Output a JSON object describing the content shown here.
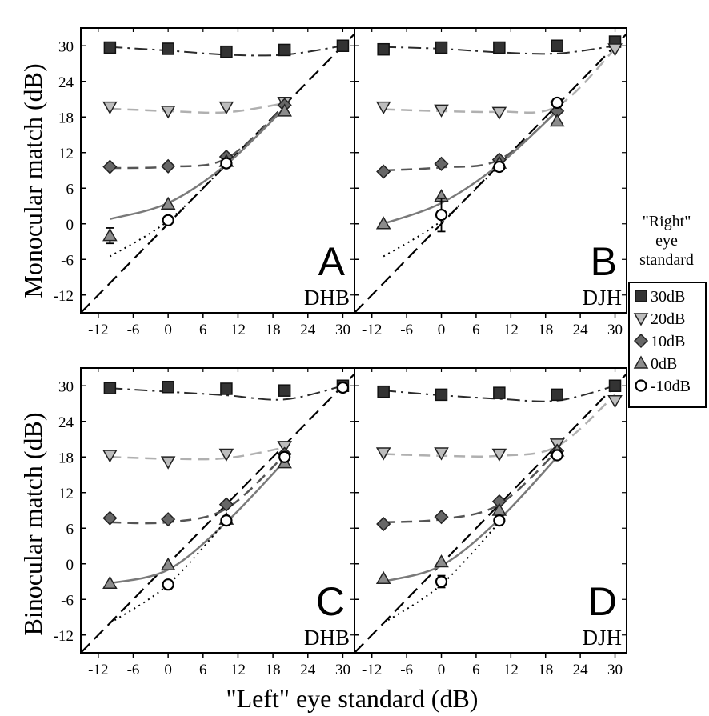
{
  "chart_data": {
    "type": "line",
    "xlabel": "\"Left\" eye standard (dB)",
    "ylabel_top": "Monocular match (dB)",
    "ylabel_bottom": "Binocular match (dB)",
    "xticks": [
      -12,
      -6,
      0,
      6,
      12,
      18,
      24,
      30
    ],
    "yticks": [
      30,
      24,
      18,
      12,
      6,
      0,
      -6,
      -12
    ],
    "xlim": [
      -15,
      32
    ],
    "ylim": [
      -15,
      33
    ],
    "legend": {
      "title_lines": [
        "\"Right\"",
        "eye",
        "standard"
      ],
      "position": "right",
      "entries": [
        {
          "label": "30dB",
          "marker": "square",
          "color": "#333333"
        },
        {
          "label": "20dB",
          "marker": "triangle-down",
          "color": "#b3b3b3"
        },
        {
          "label": "10dB",
          "marker": "diamond",
          "color": "#666666"
        },
        {
          "label": "0dB",
          "marker": "triangle-up",
          "color": "#8c8c8c"
        },
        {
          "label": "-10dB",
          "marker": "circle",
          "color": "#ffffff"
        }
      ]
    },
    "panels": [
      {
        "letter": "A",
        "subject": "DHB",
        "series": [
          {
            "name": "30dB",
            "x": [
              -10,
              0,
              10,
              20,
              30
            ],
            "y": [
              29.7,
              29.5,
              29.0,
              29.3,
              30.0
            ],
            "curve_y": [
              29.8,
              29.2,
              28.5,
              28.5,
              30.0
            ],
            "line": "dashdot"
          },
          {
            "name": "20dB",
            "x": [
              -10,
              0,
              10,
              20
            ],
            "y": [
              19.7,
              19.0,
              19.7,
              20.5
            ],
            "curve_y": [
              19.4,
              19.0,
              18.8,
              20.3
            ],
            "line": "dashed"
          },
          {
            "name": "10dB",
            "x": [
              -10,
              0,
              10,
              20
            ],
            "y": [
              9.6,
              9.7,
              11.3,
              20.0
            ],
            "curve_y": [
              9.4,
              9.6,
              11.0,
              19.8
            ],
            "line": "dashed"
          },
          {
            "name": "0dB",
            "x": [
              -10,
              0,
              10,
              20
            ],
            "y": [
              -2.0,
              3.3,
              10.5,
              19.0
            ],
            "err": [
              1.3,
              0,
              0,
              0
            ],
            "curve_y": [
              0.8,
              3.5,
              10.0,
              19.5
            ],
            "line": "solid"
          },
          {
            "name": "-10dB",
            "x": [
              0,
              10
            ],
            "y": [
              0.6,
              10.2
            ],
            "curve_y": [
              -5.5,
              0.5,
              10.0
            ],
            "curve_x": [
              -10,
              0,
              10
            ],
            "line": "dotted"
          }
        ]
      },
      {
        "letter": "B",
        "subject": "DJH",
        "series": [
          {
            "name": "30dB",
            "x": [
              -10,
              0,
              10,
              20,
              30
            ],
            "y": [
              29.4,
              29.7,
              29.7,
              30.0,
              30.7
            ],
            "curve_y": [
              29.8,
              29.5,
              28.9,
              28.7,
              30.0
            ],
            "line": "dashdot"
          },
          {
            "name": "20dB",
            "x": [
              -10,
              0,
              10,
              20,
              30
            ],
            "y": [
              19.7,
              19.2,
              18.8,
              19.7,
              29.5
            ],
            "curve_y": [
              19.3,
              19.0,
              18.9,
              19.8,
              29.5
            ],
            "line": "dashed"
          },
          {
            "name": "10dB",
            "x": [
              -10,
              0,
              10,
              20
            ],
            "y": [
              8.8,
              10.1,
              10.8,
              19.0
            ],
            "curve_y": [
              9.0,
              9.5,
              10.8,
              19.0
            ],
            "line": "dashed"
          },
          {
            "name": "0dB",
            "x": [
              -10,
              0,
              10,
              20
            ],
            "y": [
              0.0,
              4.6,
              10.2,
              17.3
            ],
            "curve_y": [
              0.0,
              3.5,
              10.0,
              19.0
            ],
            "line": "solid"
          },
          {
            "name": "-10dB",
            "x": [
              0,
              10,
              20
            ],
            "y": [
              1.5,
              9.6,
              20.4
            ],
            "err": [
              2.8,
              0,
              0
            ],
            "curve_y": [
              -5.5,
              0.5,
              9.8
            ],
            "curve_x": [
              -10,
              0,
              10
            ],
            "line": "dotted"
          }
        ]
      },
      {
        "letter": "C",
        "subject": "DHB",
        "series": [
          {
            "name": "30dB",
            "x": [
              -10,
              0,
              10,
              20,
              30
            ],
            "y": [
              29.6,
              29.8,
              29.5,
              29.2,
              30.0
            ],
            "curve_y": [
              29.6,
              29.0,
              28.4,
              27.7,
              30.0
            ],
            "line": "dashdot"
          },
          {
            "name": "20dB",
            "x": [
              -10,
              0,
              10,
              20
            ],
            "y": [
              18.3,
              17.2,
              18.5,
              19.8
            ],
            "curve_y": [
              18.0,
              17.7,
              17.8,
              19.6
            ],
            "line": "dashed"
          },
          {
            "name": "10dB",
            "x": [
              -10,
              0,
              10,
              20
            ],
            "y": [
              7.7,
              7.5,
              10.0,
              18.5
            ],
            "curve_y": [
              7.0,
              7.0,
              9.3,
              18.3
            ],
            "line": "dashed"
          },
          {
            "name": "0dB",
            "x": [
              -10,
              0,
              10,
              20
            ],
            "y": [
              -3.3,
              -0.2,
              7.5,
              17.0
            ],
            "curve_y": [
              -3.3,
              -1.0,
              7.0,
              17.3
            ],
            "line": "solid"
          },
          {
            "name": "-10dB",
            "x": [
              0,
              10,
              20,
              30
            ],
            "y": [
              -3.5,
              7.3,
              18.0,
              29.7
            ],
            "curve_y": [
              -10.0,
              -3.5,
              7.3
            ],
            "curve_x": [
              -10,
              0,
              10
            ],
            "line": "dotted"
          }
        ]
      },
      {
        "letter": "D",
        "subject": "DJH",
        "series": [
          {
            "name": "30dB",
            "x": [
              -10,
              0,
              10,
              20,
              30
            ],
            "y": [
              29.0,
              28.5,
              28.8,
              28.5,
              30.0
            ],
            "curve_y": [
              29.2,
              28.4,
              27.8,
              27.5,
              30.0
            ],
            "line": "dashdot"
          },
          {
            "name": "20dB",
            "x": [
              -10,
              0,
              10,
              20,
              30
            ],
            "y": [
              18.7,
              18.7,
              18.5,
              20.2,
              27.5
            ],
            "curve_y": [
              18.5,
              18.2,
              18.2,
              19.8,
              28.5
            ],
            "line": "dashed"
          },
          {
            "name": "10dB",
            "x": [
              -10,
              0,
              10,
              20
            ],
            "y": [
              6.7,
              7.9,
              10.5,
              19.0
            ],
            "curve_y": [
              7.0,
              7.5,
              10.0,
              19.0
            ],
            "line": "dashed"
          },
          {
            "name": "0dB",
            "x": [
              -10,
              0,
              10,
              20
            ],
            "y": [
              -2.5,
              0.3,
              9.0,
              19.0
            ],
            "curve_y": [
              -3.0,
              -0.3,
              7.5,
              18.0
            ],
            "line": "solid"
          },
          {
            "name": "-10dB",
            "x": [
              0,
              10,
              20
            ],
            "y": [
              -3.0,
              7.3,
              18.3
            ],
            "err": [
              1.0,
              0,
              0
            ],
            "curve_y": [
              -10.0,
              -3.5,
              7.0
            ],
            "curve_x": [
              -10,
              0,
              10
            ],
            "line": "dotted"
          }
        ]
      }
    ]
  }
}
